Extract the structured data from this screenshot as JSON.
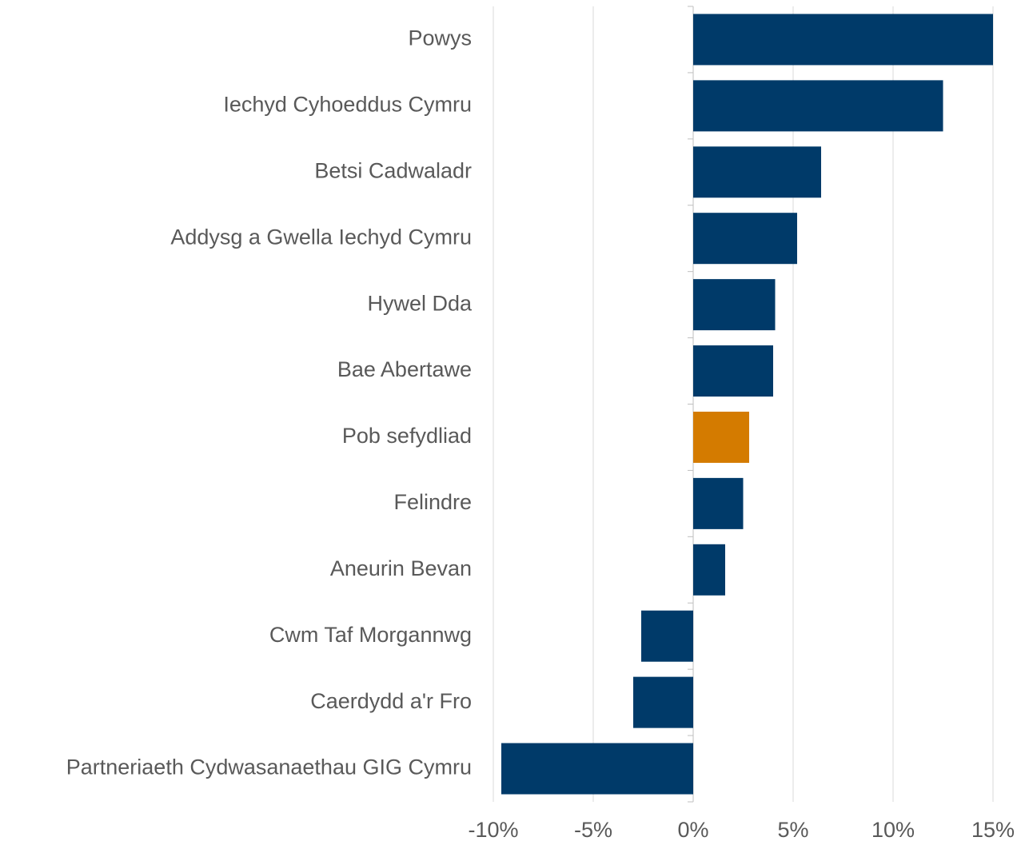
{
  "chart_data": {
    "type": "hbar",
    "categories": [
      "Powys",
      "Iechyd Cyhoeddus Cymru",
      "Betsi Cadwaladr",
      "Addysg a Gwella Iechyd Cymru",
      "Hywel Dda",
      "Bae Abertawe",
      "Pob sefydliad",
      "Felindre",
      "Aneurin Bevan",
      "Cwm Taf Morgannwg",
      "Caerdydd a'r Fro",
      "Partneriaeth Cydwasanaethau GIG Cymru"
    ],
    "values": [
      15.0,
      12.5,
      6.4,
      5.2,
      4.1,
      4.0,
      2.8,
      2.5,
      1.6,
      -2.6,
      -3.0,
      -9.6
    ],
    "colors": [
      "#003a69",
      "#003a69",
      "#003a69",
      "#003a69",
      "#003a69",
      "#003a69",
      "#d47b00",
      "#003a69",
      "#003a69",
      "#003a69",
      "#003a69",
      "#003a69"
    ],
    "xlim": [
      -10,
      15
    ],
    "xticks": [
      {
        "value": -10,
        "label": "-10%"
      },
      {
        "value": -5,
        "label": "-5%"
      },
      {
        "value": 0,
        "label": "0%"
      },
      {
        "value": 5,
        "label": "5%"
      },
      {
        "value": 10,
        "label": "10%"
      },
      {
        "value": 15,
        "label": "15%"
      }
    ],
    "grid": true
  }
}
